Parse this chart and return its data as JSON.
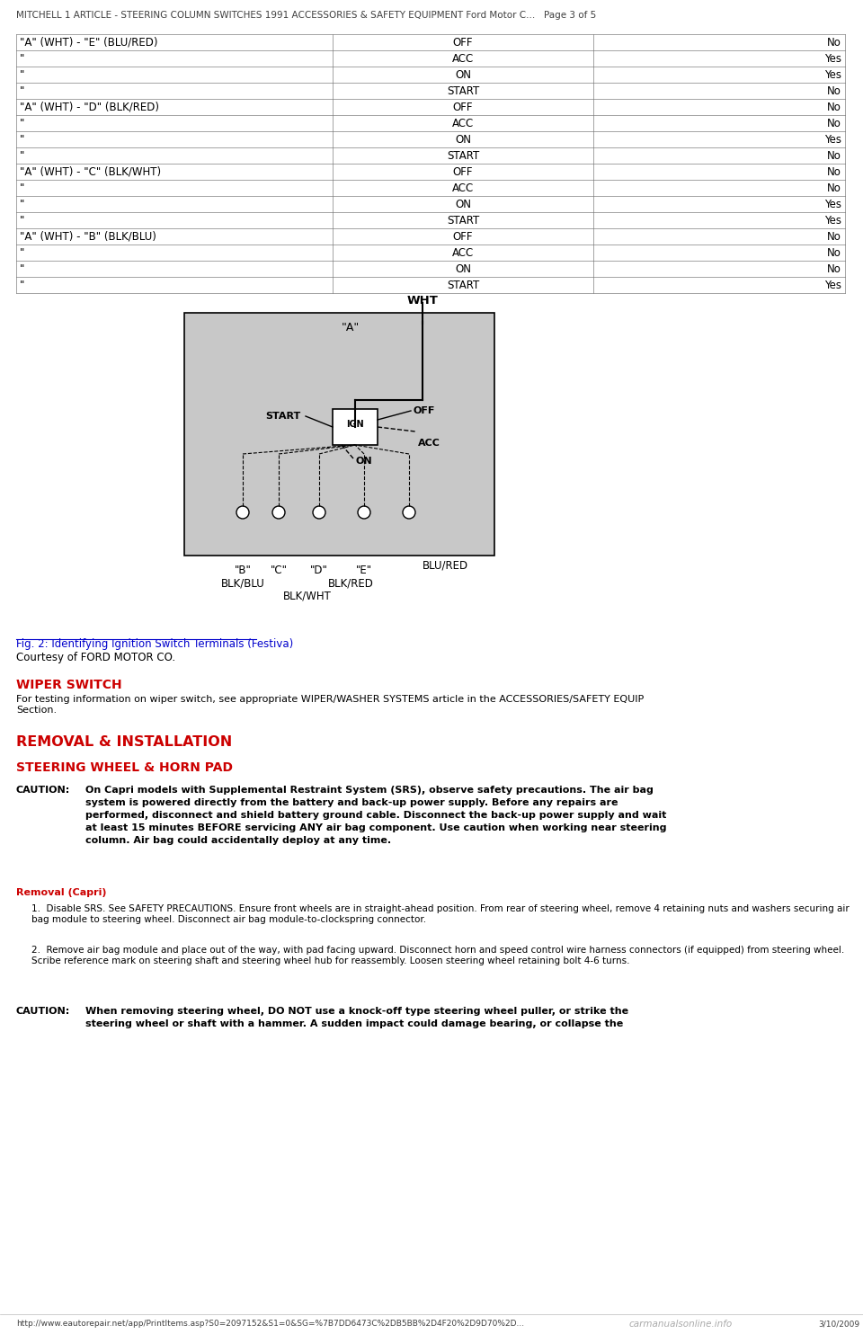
{
  "page_bg": "#ffffff",
  "header_text": "MITCHELL 1 ARTICLE - STEERING COLUMN SWITCHES 1991 ACCESSORIES & SAFETY EQUIPMENT Ford Motor C...   Page 3 of 5",
  "footer_url": "http://www.eautorepair.net/app/PrintItems.asp?S0=2097152&S1=0&SG=%7B7DD6473C%2DB5BB%2D4F20%2D9D70%2D...",
  "footer_date": "3/10/2009",
  "footer_watermark": "carmanualsonline.info",
  "table_rows": [
    [
      "\"A\" (WHT) - \"E\" (BLU/RED)",
      "OFF",
      "No"
    ],
    [
      "\"",
      "ACC",
      "Yes"
    ],
    [
      "\"",
      "ON",
      "Yes"
    ],
    [
      "\"",
      "START",
      "No"
    ],
    [
      "\"A\" (WHT) - \"D\" (BLK/RED)",
      "OFF",
      "No"
    ],
    [
      "\"",
      "ACC",
      "No"
    ],
    [
      "\"",
      "ON",
      "Yes"
    ],
    [
      "\"",
      "START",
      "No"
    ],
    [
      "\"A\" (WHT) - \"C\" (BLK/WHT)",
      "OFF",
      "No"
    ],
    [
      "\"",
      "ACC",
      "No"
    ],
    [
      "\"",
      "ON",
      "Yes"
    ],
    [
      "\"",
      "START",
      "Yes"
    ],
    [
      "\"A\" (WHT) - \"B\" (BLK/BLU)",
      "OFF",
      "No"
    ],
    [
      "\"",
      "ACC",
      "No"
    ],
    [
      "\"",
      "ON",
      "No"
    ],
    [
      "\"",
      "START",
      "Yes"
    ]
  ],
  "fig_caption": "Fig. 2: Identifying Ignition Switch Terminals (Festiva)",
  "fig_courtesy": "Courtesy of FORD MOTOR CO.",
  "wiper_heading": "WIPER SWITCH",
  "wiper_text": "For testing information on wiper switch, see appropriate WIPER/WASHER SYSTEMS article in the ACCESSORIES/SAFETY EQUIP\nSection.",
  "removal_heading": "REMOVAL & INSTALLATION",
  "steering_heading": "STEERING WHEEL & HORN PAD",
  "caution_label": "CAUTION:",
  "caution_text": "On Capri models with Supplemental Restraint System (SRS), observe safety precautions. The air bag\nsystem is powered directly from the battery and back-up power supply. Before any repairs are\nperformed, disconnect and shield battery ground cable. Disconnect the back-up power supply and wait\nat least 15 minutes BEFORE servicing ANY air bag component. Use caution when working near steering\ncolumn. Air bag could accidentally deploy at any time.",
  "removal_capri": "Removal (Capri)",
  "step1": "Disable SRS. See SAFETY PRECAUTIONS. Ensure front wheels are in straight-ahead position. From rear of steering wheel, remove 4 retaining nuts and washers securing air bag module to steering wheel. Disconnect air bag module-to-clockspring connector.",
  "step2": "Remove air bag module and place out of the way, with pad facing upward. Disconnect horn and speed control wire harness connectors (if equipped) from steering wheel. Scribe reference mark on steering shaft and steering wheel hub for reassembly. Loosen steering wheel retaining bolt 4-6 turns.",
  "caution2_label": "CAUTION:",
  "caution2_text": "When removing steering wheel, DO NOT use a knock-off type steering wheel puller, or strike the\nsteering wheel or shaft with a hammer. A sudden impact could damage bearing, or collapse the",
  "text_color": "#000000",
  "link_color": "#0000cc",
  "red_heading_color": "#cc0000",
  "table_border_color": "#808080",
  "table_bg": "#ffffff",
  "header_color": "#404040",
  "diagram_bg": "#c8c8c8",
  "font_size_header": 7.5,
  "font_size_table": 8.5,
  "font_size_body": 8.0,
  "font_size_caption": 8.5,
  "font_size_heading": 10.0
}
